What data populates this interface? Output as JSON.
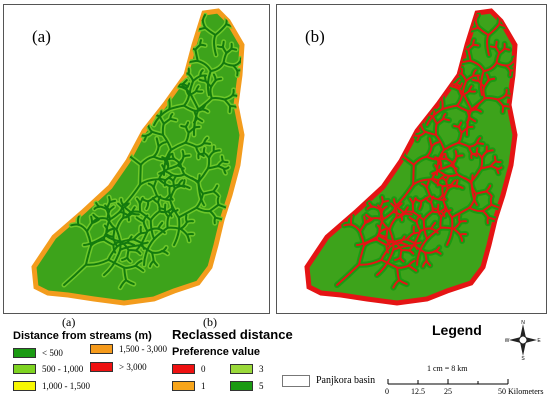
{
  "panels": {
    "a": {
      "label": "(a)",
      "caption": "(a)"
    },
    "b": {
      "label": "(b)",
      "caption": "(b)"
    }
  },
  "distance_legend": {
    "title": "Distance from streams (m)",
    "items": [
      {
        "label": "< 500",
        "color": "#1a9a12"
      },
      {
        "label": "500 - 1,000",
        "color": "#7ed321"
      },
      {
        "label": "1,000 - 1,500",
        "color": "#f7f703"
      },
      {
        "label": "1,500 - 3,000",
        "color": "#f59a1b"
      },
      {
        "label": "> 3,000",
        "color": "#ee1111"
      }
    ]
  },
  "reclass_legend": {
    "title": "Reclassed distance",
    "subtitle": "Preference value",
    "items": [
      {
        "label": "0",
        "color": "#ee1111"
      },
      {
        "label": "3",
        "color": "#9ad93a"
      },
      {
        "label": "1",
        "color": "#f7a51b"
      },
      {
        "label": "5",
        "color": "#1a9a12"
      }
    ]
  },
  "legend": {
    "title": "Legend",
    "basin_label": "Panjkora basin",
    "scale_ratio": "1 cm = 8 km",
    "scale_ticks": [
      "0",
      "12.5",
      "25",
      "50 Kilometers"
    ],
    "compass": {
      "n": "N",
      "s": "S",
      "e": "E",
      "w": "W"
    }
  },
  "colors": {
    "basin_fill_a": "#3da31b",
    "stream_a": "#1f8a14",
    "halo_a": "#f39c1d",
    "basin_fill_b": "#3da31b",
    "stream_b": "#e51414",
    "halo_b": "#e51414"
  }
}
